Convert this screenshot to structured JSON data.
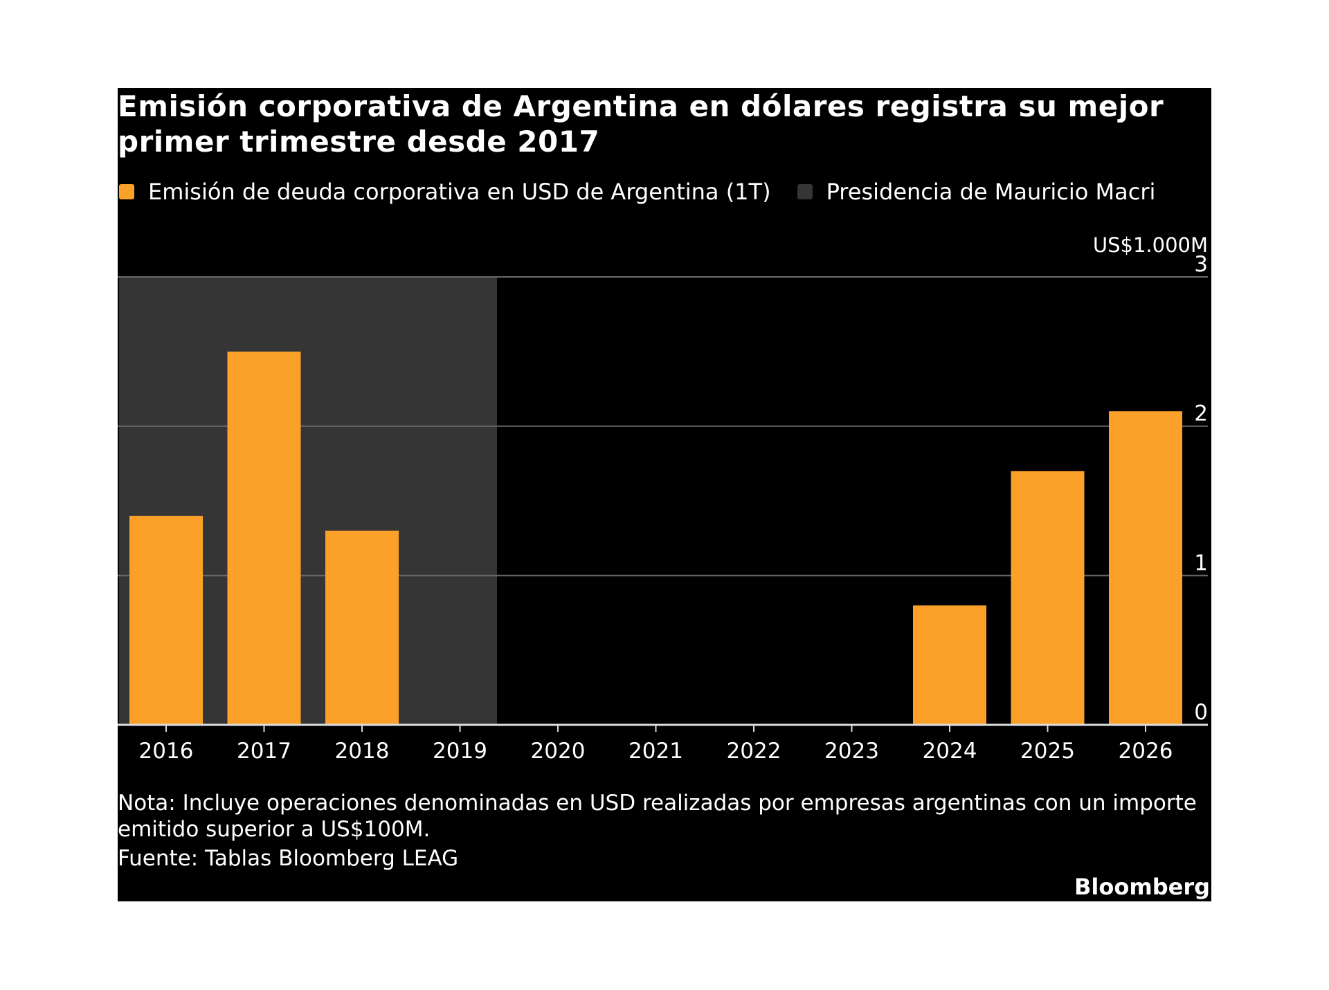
{
  "chart_data": {
    "type": "bar",
    "title": "Emisión corporativa de Argentina en dólares registra su mejor primer trimestre desde 2017",
    "categories": [
      "2016",
      "2017",
      "2018",
      "2019",
      "2020",
      "2021",
      "2022",
      "2023",
      "2024",
      "2025",
      "2026"
    ],
    "series": [
      {
        "name": "Emisión de deuda corporativa en USD de Argentina (1T)",
        "color": "#FBA12A",
        "values": [
          1.4,
          2.5,
          1.3,
          0,
          0,
          0,
          0,
          0,
          0.8,
          1.7,
          2.1
        ]
      }
    ],
    "shaded_region": {
      "name": "Presidencia de Mauricio Macri",
      "color": "#353535",
      "from": "2016",
      "to": "2019"
    },
    "unit_label": "US$1.000M",
    "ylim": [
      0,
      3
    ],
    "yticks": [
      "0",
      "1",
      "2",
      "3"
    ],
    "y_axis_side": "right",
    "grid": true,
    "legend_position": "top-left"
  },
  "note_line1": "Nota: Incluye operaciones denominadas en USD realizadas por empresas argentinas con un importe",
  "note_line2": "emitido superior a US$100M.",
  "source": "Fuente: Tablas Bloomberg LEAG",
  "logo": "Bloomberg"
}
